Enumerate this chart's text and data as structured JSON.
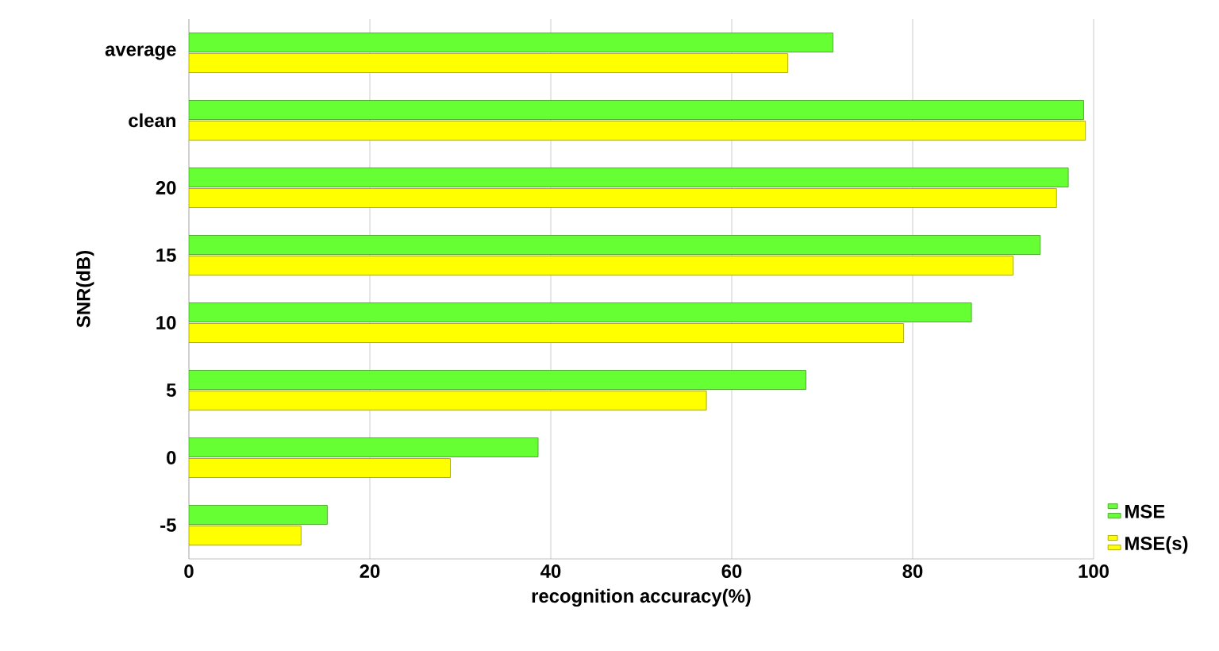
{
  "chart_data": {
    "type": "bar",
    "orientation": "horizontal",
    "xlabel": "recognition accuracy(%)",
    "ylabel": "SNR(dB)",
    "categories": [
      "average",
      "clean",
      "20",
      "15",
      "10",
      "5",
      "0",
      "-5"
    ],
    "series": [
      {
        "name": "MSE",
        "color": "#66ff33",
        "values": [
          71.2,
          98.9,
          97.2,
          94.1,
          86.5,
          68.2,
          38.6,
          15.3
        ]
      },
      {
        "name": "MSE(s)",
        "color": "#ffff00",
        "values": [
          66.2,
          99.1,
          95.9,
          91.1,
          79.0,
          57.2,
          28.9,
          12.4
        ]
      }
    ],
    "xlim": [
      0,
      100
    ],
    "xticks": [
      0,
      20,
      40,
      60,
      80,
      100
    ],
    "grid": "x",
    "legend": "bottom right"
  }
}
